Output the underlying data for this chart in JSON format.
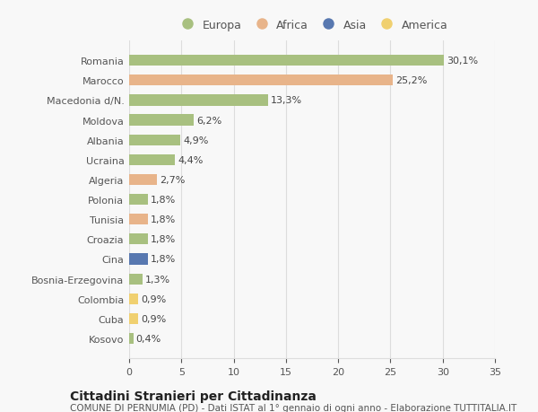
{
  "countries": [
    "Romania",
    "Marocco",
    "Macedonia d/N.",
    "Moldova",
    "Albania",
    "Ucraina",
    "Algeria",
    "Polonia",
    "Tunisia",
    "Croazia",
    "Cina",
    "Bosnia-Erzegovina",
    "Colombia",
    "Cuba",
    "Kosovo"
  ],
  "values": [
    30.1,
    25.2,
    13.3,
    6.2,
    4.9,
    4.4,
    2.7,
    1.8,
    1.8,
    1.8,
    1.8,
    1.3,
    0.9,
    0.9,
    0.4
  ],
  "labels": [
    "30,1%",
    "25,2%",
    "13,3%",
    "6,2%",
    "4,9%",
    "4,4%",
    "2,7%",
    "1,8%",
    "1,8%",
    "1,8%",
    "1,8%",
    "1,3%",
    "0,9%",
    "0,9%",
    "0,4%"
  ],
  "colors": [
    "#a8c080",
    "#e8b48a",
    "#a8c080",
    "#a8c080",
    "#a8c080",
    "#a8c080",
    "#e8b48a",
    "#a8c080",
    "#e8b48a",
    "#a8c080",
    "#5878b0",
    "#a8c080",
    "#f0d070",
    "#f0d070",
    "#a8c080"
  ],
  "legend_labels": [
    "Europa",
    "Africa",
    "Asia",
    "America"
  ],
  "legend_colors": [
    "#a8c080",
    "#e8b48a",
    "#5878b0",
    "#f0d070"
  ],
  "title": "Cittadini Stranieri per Cittadinanza",
  "subtitle": "COMUNE DI PERNUMIA (PD) - Dati ISTAT al 1° gennaio di ogni anno - Elaborazione TUTTITALIA.IT",
  "xlim": [
    0,
    35
  ],
  "xticks": [
    0,
    5,
    10,
    15,
    20,
    25,
    30,
    35
  ],
  "bg_color": "#f8f8f8",
  "grid_color": "#dddddd",
  "bar_height": 0.55,
  "title_fontsize": 10,
  "subtitle_fontsize": 7.5,
  "tick_fontsize": 8,
  "label_fontsize": 8,
  "legend_fontsize": 9
}
